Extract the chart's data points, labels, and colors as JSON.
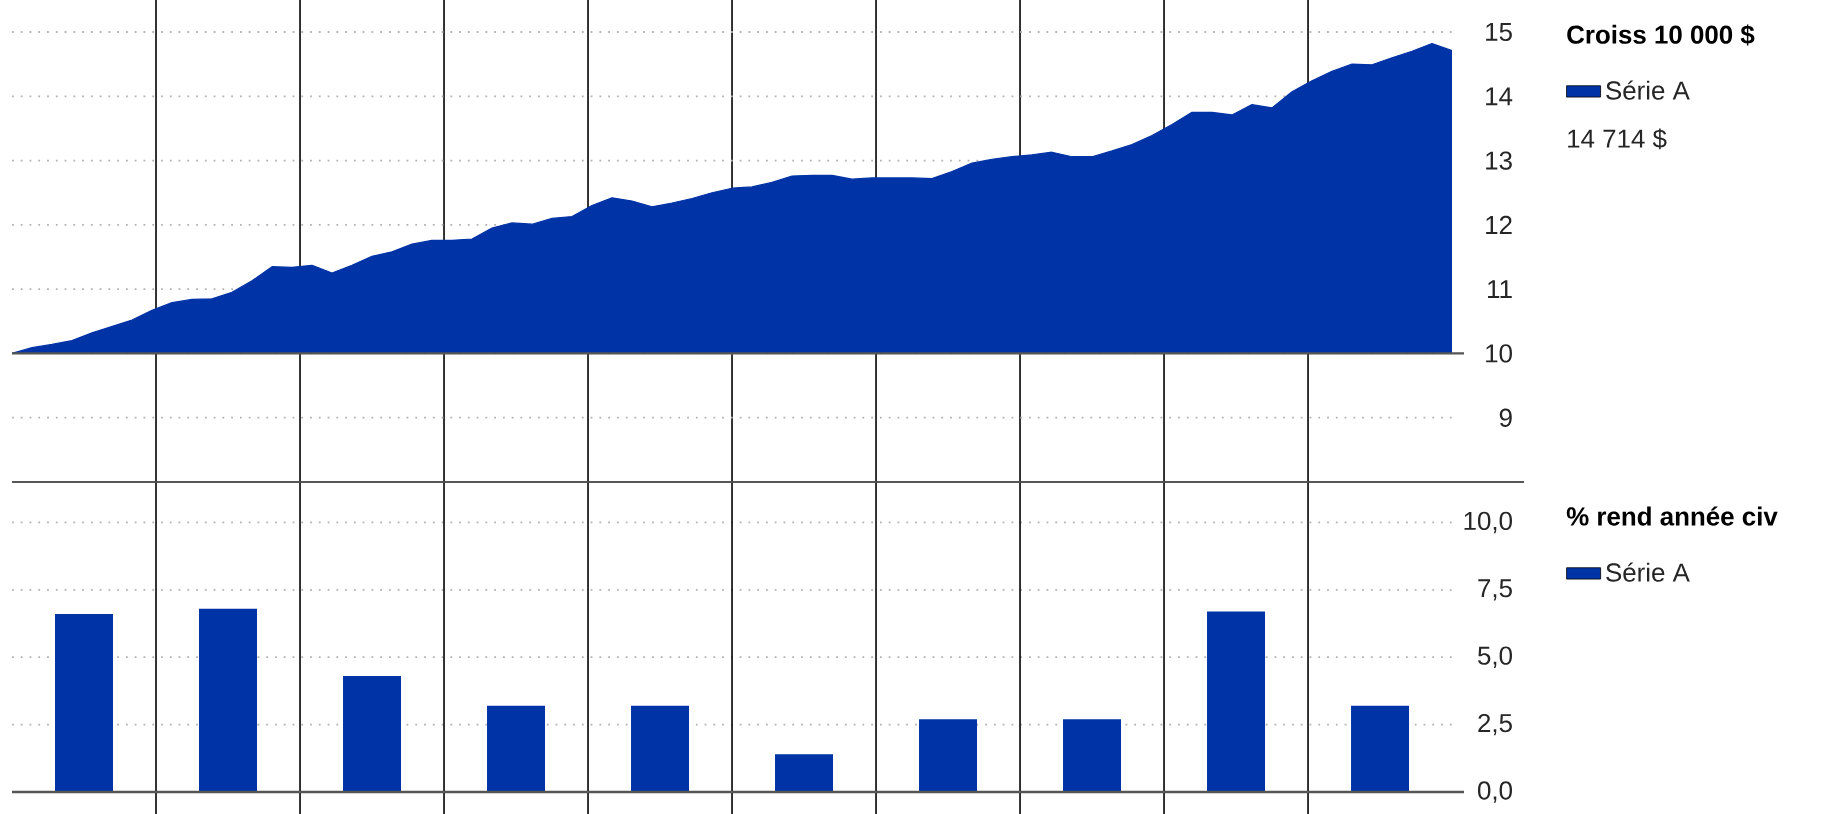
{
  "chart_data": [
    {
      "type": "area",
      "legend_title": "Croiss 10 000 $",
      "annotations": [
        "14 714 $"
      ],
      "legend": "right",
      "grid": "y",
      "categories": [
        null,
        null,
        null,
        null,
        null,
        null,
        null,
        null,
        null,
        null,
        null,
        null,
        null,
        null,
        null,
        null,
        null,
        null,
        null,
        null,
        null,
        null,
        null,
        null,
        null,
        null,
        null,
        null,
        null,
        null,
        null,
        null,
        null,
        null,
        null,
        null,
        null,
        null,
        null,
        null,
        null,
        null,
        null,
        null,
        null,
        null,
        null,
        null,
        null,
        null,
        null,
        null,
        null,
        null,
        null,
        null,
        null,
        null,
        null,
        null,
        null,
        null,
        null,
        null,
        null,
        null,
        null,
        null,
        null,
        null,
        null,
        null,
        null
      ],
      "ylim": [
        8,
        15
      ],
      "yticks": [
        9,
        10,
        11,
        12,
        13,
        14,
        15
      ],
      "ref_lines": [
        {
          "axis": "y",
          "value": 10,
          "color": "#555555"
        }
      ],
      "series": [
        {
          "name": "Série A",
          "color": "#0033a6",
          "values": [
            10.0,
            10.09,
            10.14,
            10.2,
            10.32,
            10.42,
            10.52,
            10.67,
            10.79,
            10.84,
            10.85,
            10.95,
            11.13,
            11.35,
            11.34,
            11.37,
            11.25,
            11.37,
            11.51,
            11.58,
            11.7,
            11.76,
            11.76,
            11.78,
            11.95,
            12.03,
            12.01,
            12.1,
            12.13,
            12.3,
            12.42,
            12.37,
            12.28,
            12.34,
            12.41,
            12.5,
            12.57,
            12.59,
            12.66,
            12.76,
            12.77,
            12.77,
            12.71,
            12.73,
            12.73,
            12.73,
            12.72,
            12.83,
            12.96,
            13.02,
            13.06,
            13.09,
            13.13,
            13.06,
            13.06,
            13.15,
            13.25,
            13.39,
            13.56,
            13.75,
            13.75,
            13.71,
            13.87,
            13.82,
            14.07,
            14.24,
            14.39,
            14.5,
            14.49,
            14.6,
            14.7,
            14.82,
            14.71
          ]
        }
      ]
    },
    {
      "type": "bar",
      "legend_title": "% rend année civ",
      "legend": "right",
      "grid": true,
      "tick_labels": "y",
      "categories": [
        null,
        null,
        null,
        null,
        null,
        null,
        null,
        null,
        null,
        null
      ],
      "ylim": [
        0,
        11.5
      ],
      "yticks": [
        {
          "value": 0,
          "label": "0,0"
        },
        {
          "value": 2.5,
          "label": "2,5"
        },
        {
          "value": 5,
          "label": "5,0"
        },
        {
          "value": 7.5,
          "label": "7,5"
        },
        {
          "value": 10,
          "label": "10,0"
        }
      ],
      "ref_lines": [
        {
          "axis": "y",
          "value": 0,
          "color": "#555555"
        }
      ],
      "series": [
        {
          "name": "Série A",
          "color": "#0033a6",
          "values": [
            6.6,
            6.8,
            4.3,
            3.2,
            3.2,
            1.4,
            2.7,
            2.7,
            6.7,
            3.2
          ]
        }
      ]
    }
  ]
}
